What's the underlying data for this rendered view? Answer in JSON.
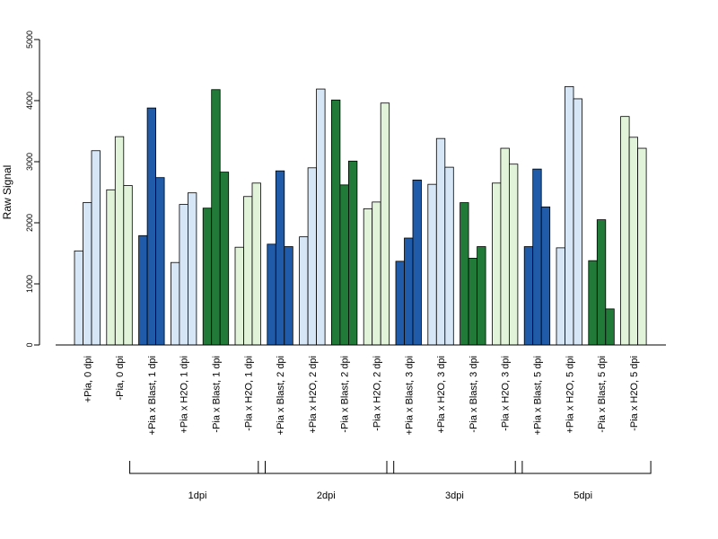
{
  "chart_data": {
    "type": "bar",
    "ylabel": "Raw Signal",
    "ylim": [
      0,
      5000
    ],
    "yticks": [
      "0",
      "1000",
      "2000",
      "3000",
      "4000",
      "5000"
    ],
    "groups": [
      {
        "label": "+Pia, 0 dpi",
        "color": "#d6e6f7",
        "values": [
          1540,
          2330,
          3180
        ]
      },
      {
        "label": "-Pia, 0 dpi",
        "color": "#e1f4da",
        "values": [
          2540,
          3410,
          2610
        ]
      },
      {
        "label": "+Pia x Blast, 1 dpi",
        "color": "#1f5ba8",
        "values": [
          1790,
          3880,
          2740
        ]
      },
      {
        "label": "+Pia x H2O, 1 dpi",
        "color": "#d6e6f7",
        "values": [
          1350,
          2300,
          2490
        ]
      },
      {
        "label": "-Pia x Blast, 1 dpi",
        "color": "#217a37",
        "values": [
          2240,
          4180,
          2830
        ]
      },
      {
        "label": "-Pia x H2O, 1 dpi",
        "color": "#e1f4da",
        "values": [
          1600,
          2430,
          2650
        ]
      },
      {
        "label": "+Pia x Blast, 2 dpi",
        "color": "#1f5ba8",
        "values": [
          1650,
          2850,
          1610
        ]
      },
      {
        "label": "+Pia x H2O, 2 dpi",
        "color": "#d6e6f7",
        "values": [
          1770,
          2900,
          4190
        ]
      },
      {
        "label": "-Pia x Blast, 2 dpi",
        "color": "#217a37",
        "values": [
          4010,
          2620,
          3010
        ]
      },
      {
        "label": "-Pia x H2O, 2 dpi",
        "color": "#e1f4da",
        "values": [
          2230,
          2340,
          3960
        ]
      },
      {
        "label": "+Pia x Blast, 3 dpi",
        "color": "#1f5ba8",
        "values": [
          1370,
          1750,
          2700
        ]
      },
      {
        "label": "+Pia x H2O, 3 dpi",
        "color": "#d6e6f7",
        "values": [
          2630,
          3380,
          2910
        ]
      },
      {
        "label": "-Pia x Blast, 3 dpi",
        "color": "#217a37",
        "values": [
          2330,
          1420,
          1610
        ]
      },
      {
        "label": "-Pia x H2O, 3 dpi",
        "color": "#e1f4da",
        "values": [
          2650,
          3220,
          2960
        ]
      },
      {
        "label": "+Pia x Blast, 5 dpi",
        "color": "#1f5ba8",
        "values": [
          1610,
          2880,
          2260
        ]
      },
      {
        "label": "+Pia x H2O, 5 dpi",
        "color": "#d6e6f7",
        "values": [
          1590,
          4230,
          4030
        ]
      },
      {
        "label": "-Pia x Blast, 5 dpi",
        "color": "#217a37",
        "values": [
          1380,
          2050,
          590
        ]
      },
      {
        "label": "-Pia x H2O, 5 dpi",
        "color": "#e1f4da",
        "values": [
          3740,
          3400,
          3220
        ]
      }
    ],
    "brackets": [
      {
        "label": "1dpi",
        "from_group": 2,
        "to_group": 5
      },
      {
        "label": "2dpi",
        "from_group": 6,
        "to_group": 9
      },
      {
        "label": "3dpi",
        "from_group": 10,
        "to_group": 13
      },
      {
        "label": "5dpi",
        "from_group": 14,
        "to_group": 17
      }
    ],
    "grid": false,
    "legend": "none"
  }
}
